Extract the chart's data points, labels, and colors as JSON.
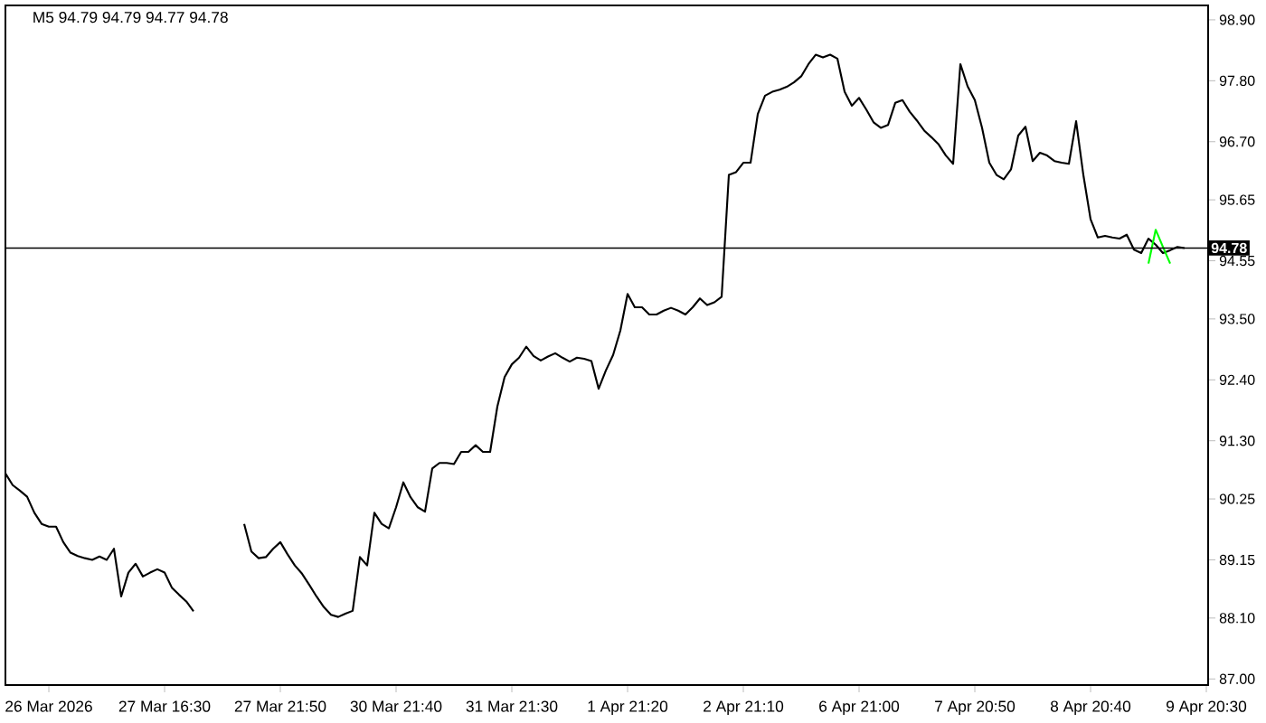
{
  "chart_data": {
    "type": "line",
    "title": "M5  94.79 94.79 94.77 94.78",
    "categories": [
      null,
      null,
      null,
      null,
      null,
      null,
      "26 Mar 2026",
      null,
      null,
      null,
      null,
      null,
      null,
      null,
      null,
      null,
      null,
      null,
      null,
      null,
      null,
      null,
      "27 Mar 16:30",
      null,
      null,
      null,
      null,
      null,
      null,
      null,
      null,
      null,
      null,
      null,
      null,
      null,
      null,
      null,
      "27 Mar 21:50",
      null,
      null,
      null,
      null,
      null,
      null,
      null,
      null,
      null,
      null,
      null,
      null,
      null,
      null,
      null,
      "30 Mar 21:40",
      null,
      null,
      null,
      null,
      null,
      null,
      null,
      null,
      null,
      null,
      null,
      null,
      null,
      null,
      null,
      "31 Mar 21:30",
      null,
      null,
      null,
      null,
      null,
      null,
      null,
      null,
      null,
      null,
      null,
      null,
      null,
      null,
      null,
      "1 Apr 21:20",
      null,
      null,
      null,
      null,
      null,
      null,
      null,
      null,
      null,
      null,
      null,
      null,
      null,
      null,
      null,
      "2 Apr 21:10",
      null,
      null,
      null,
      null,
      null,
      null,
      null,
      null,
      null,
      null,
      null,
      null,
      null,
      null,
      null,
      "6 Apr 21:00",
      null,
      null,
      null,
      null,
      null,
      null,
      null,
      null,
      null,
      null,
      null,
      null,
      null,
      null,
      null,
      "7 Apr 20:50",
      null,
      null,
      null,
      null,
      null,
      null,
      null,
      null,
      null,
      null,
      null,
      null,
      null,
      null,
      null,
      "8 Apr 20:40",
      null,
      null,
      null,
      null,
      null,
      null,
      null,
      null,
      null,
      null,
      null,
      null,
      null,
      null,
      null,
      "9 Apr 20:30"
    ],
    "ylim": [
      86.89,
      99.16
    ],
    "yticks": [
      {
        "value": 87.0,
        "label": "87.00"
      },
      {
        "value": 88.1,
        "label": "88.10"
      },
      {
        "value": 89.15,
        "label": "89.15"
      },
      {
        "value": 90.25,
        "label": "90.25"
      },
      {
        "value": 91.3,
        "label": "91.30"
      },
      {
        "value": 92.4,
        "label": "92.40"
      },
      {
        "value": 93.5,
        "label": "93.50"
      },
      {
        "value": 94.55,
        "label": "94.55"
      },
      {
        "value": 95.65,
        "label": "95.65"
      },
      {
        "value": 96.7,
        "label": "96.70"
      },
      {
        "value": 97.8,
        "label": "97.80"
      },
      {
        "value": 98.9,
        "label": "98.90"
      }
    ],
    "ref_lines": [
      {
        "axis": "y",
        "value": 94.78,
        "label": "94.78",
        "color": "#000000"
      }
    ],
    "series": [
      {
        "color": "#000000",
        "values": [
          90.71,
          90.5,
          90.4,
          90.29,
          90.0,
          89.8,
          89.75,
          89.75,
          89.47,
          89.28,
          89.22,
          89.18,
          89.15,
          89.21,
          89.15,
          89.35,
          88.49,
          88.92,
          89.08,
          88.85,
          88.92,
          88.98,
          88.92,
          88.65,
          88.52,
          88.4,
          88.22,
          null,
          null,
          null,
          null,
          null,
          null,
          89.8,
          89.3,
          89.18,
          89.2,
          89.35,
          89.47,
          89.25,
          89.05,
          88.9,
          88.7,
          88.49,
          88.3,
          88.16,
          88.12,
          88.18,
          88.23,
          89.2,
          89.05,
          90.0,
          89.8,
          89.72,
          90.1,
          90.55,
          90.28,
          90.1,
          90.02,
          90.8,
          90.9,
          90.9,
          90.88,
          91.1,
          91.1,
          91.22,
          91.1,
          91.1,
          91.92,
          92.45,
          92.68,
          92.8,
          93.0,
          92.83,
          92.75,
          92.82,
          92.88,
          92.8,
          92.73,
          92.8,
          92.78,
          92.74,
          92.24,
          92.57,
          92.85,
          93.29,
          93.95,
          93.71,
          93.71,
          93.58,
          93.58,
          93.65,
          93.7,
          93.65,
          93.58,
          93.71,
          93.87,
          93.75,
          93.8,
          93.9,
          96.1,
          96.15,
          96.32,
          96.32,
          97.2,
          97.53,
          97.6,
          97.64,
          97.69,
          97.77,
          97.88,
          98.1,
          98.27,
          98.22,
          98.27,
          98.2,
          97.6,
          97.35,
          97.49,
          97.28,
          97.05,
          96.95,
          97.0,
          97.4,
          97.45,
          97.24,
          97.08,
          96.9,
          96.78,
          96.65,
          96.45,
          96.3,
          98.1,
          97.7,
          97.45,
          96.95,
          96.32,
          96.1,
          96.02,
          96.2,
          96.81,
          96.97,
          96.35,
          96.5,
          96.45,
          96.35,
          96.32,
          96.3,
          97.07,
          96.1,
          95.3,
          94.97,
          95.0,
          94.97,
          94.95,
          95.02,
          94.75,
          94.69,
          94.95,
          94.84,
          94.69,
          94.74,
          94.8,
          94.78,
          null,
          null,
          null
        ]
      },
      {
        "color": "#00ff00",
        "values": [
          null,
          null,
          null,
          null,
          null,
          null,
          null,
          null,
          null,
          null,
          null,
          null,
          null,
          null,
          null,
          null,
          null,
          null,
          null,
          null,
          null,
          null,
          null,
          null,
          null,
          null,
          null,
          null,
          null,
          null,
          null,
          null,
          null,
          null,
          null,
          null,
          null,
          null,
          null,
          null,
          null,
          null,
          null,
          null,
          null,
          null,
          null,
          null,
          null,
          null,
          null,
          null,
          null,
          null,
          null,
          null,
          null,
          null,
          null,
          null,
          null,
          null,
          null,
          null,
          null,
          null,
          null,
          null,
          null,
          null,
          null,
          null,
          null,
          null,
          null,
          null,
          null,
          null,
          null,
          null,
          null,
          null,
          null,
          null,
          null,
          null,
          null,
          null,
          null,
          null,
          null,
          null,
          null,
          null,
          null,
          null,
          null,
          null,
          null,
          null,
          null,
          null,
          null,
          null,
          null,
          null,
          null,
          null,
          null,
          null,
          null,
          null,
          null,
          null,
          null,
          null,
          null,
          null,
          null,
          null,
          null,
          null,
          null,
          null,
          null,
          null,
          null,
          null,
          null,
          null,
          null,
          null,
          null,
          null,
          null,
          null,
          null,
          null,
          null,
          null,
          null,
          null,
          null,
          null,
          null,
          null,
          null,
          null,
          null,
          null,
          null,
          null,
          null,
          null,
          null,
          null,
          null,
          null,
          94.5,
          95.11,
          94.8,
          94.5,
          null,
          null,
          null,
          null,
          null
        ]
      }
    ]
  }
}
